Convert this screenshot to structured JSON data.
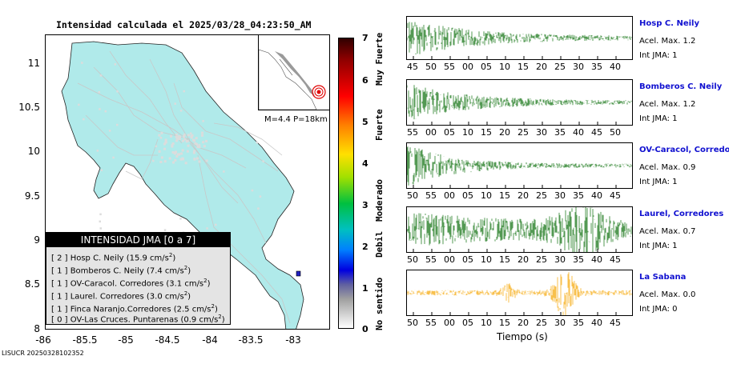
{
  "map": {
    "title": "Intensidad calculada el 2025/03/28_04:23:50_AM",
    "y_ticks": [
      "11",
      "10.5",
      "10",
      "9.5",
      "9",
      "8.5",
      "8"
    ],
    "x_ticks": [
      "-86",
      "-85.5",
      "-85",
      "-84.5",
      "-84",
      "-83.5",
      "-83"
    ],
    "inset_caption": "M=4.4 P=18km",
    "footer": "LISUCR 20250328102352"
  },
  "legend": {
    "title": "INTENSIDAD JMA [0 a 7]",
    "rows": [
      {
        "prefix": "[ 2 ]  Hosp C. Neily (15.9 cm/s",
        "sup": "2",
        "suffix": ")"
      },
      {
        "prefix": "[ 1 ]  Bomberos C. Neily (7.4 cm/s",
        "sup": "2",
        "suffix": ")"
      },
      {
        "prefix": "[ 1 ]  OV-Caracol. Corredores (3.1 cm/s",
        "sup": "2",
        "suffix": ")"
      },
      {
        "prefix": "[ 1 ]  Laurel. Corredores (3.0 cm/s",
        "sup": "2",
        "suffix": ")"
      },
      {
        "prefix": "[ 1 ]  Finca Naranjo.Corredores (2.5 cm/s",
        "sup": "2",
        "suffix": ")"
      },
      {
        "prefix": "[ 0 ]  OV-Las Cruces. Puntarenas (0.9 cm/s",
        "sup": "2",
        "suffix": ")"
      }
    ]
  },
  "colorbar": {
    "ticks": [
      "7",
      "6",
      "5",
      "4",
      "3",
      "2",
      "1",
      "0"
    ],
    "categories": [
      "Muy Fuerte",
      "Fuerte",
      "Moderado",
      "Debil",
      "No sentido"
    ]
  },
  "traces": [
    {
      "name": "Hosp C. Neily",
      "acel": "Acel. Max. 1.2",
      "jma": "Int JMA: 1",
      "ticks": [
        "45",
        "50",
        "55",
        "00",
        "05",
        "10",
        "15",
        "20",
        "25",
        "30",
        "35",
        "40"
      ]
    },
    {
      "name": "Bomberos C. Neily",
      "acel": "Acel. Max. 1.2",
      "jma": "Int JMA: 1",
      "ticks": [
        "55",
        "00",
        "05",
        "10",
        "15",
        "20",
        "25",
        "30",
        "35",
        "40",
        "45",
        "50"
      ]
    },
    {
      "name": "OV-Caracol, Corredore",
      "acel": "Acel. Max. 0.9",
      "jma": "Int JMA: 1",
      "ticks": [
        "50",
        "55",
        "00",
        "05",
        "10",
        "15",
        "20",
        "25",
        "30",
        "35",
        "40",
        "45"
      ]
    },
    {
      "name": "Laurel, Corredores",
      "acel": "Acel. Max. 0.7",
      "jma": "Int JMA: 1",
      "ticks": [
        "50",
        "55",
        "00",
        "05",
        "10",
        "15",
        "20",
        "25",
        "30",
        "35",
        "40",
        "45"
      ]
    },
    {
      "name": "La Sabana",
      "acel": "Acel. Max. 0.0",
      "jma": "Int JMA: 0",
      "ticks": [
        "50",
        "55",
        "00",
        "05",
        "10",
        "15",
        "20",
        "25",
        "30",
        "35",
        "40",
        "45"
      ]
    }
  ],
  "xaxis_label": "Tiempo (s)",
  "colors": {
    "map_land": "#b0eaea",
    "roads": "#c8c8c8",
    "wave_green": "#0a6e0a",
    "wave_orange": "#f5a500",
    "station": "#2020c0"
  },
  "chart_data": [
    {
      "type": "map",
      "title": "Intensidad calculada el 2025/03/28_04:23:50_AM",
      "xlim": [
        -86,
        -82.6
      ],
      "ylim": [
        8,
        11.3
      ],
      "epicenter": {
        "lon": -82.9,
        "lat": 8.55,
        "magnitude": 4.4,
        "depth_km": 18
      }
    },
    {
      "type": "line",
      "series": [
        {
          "name": "Hosp C. Neily",
          "peak_accel": 1.2,
          "jma": 1
        },
        {
          "name": "Bomberos C. Neily",
          "peak_accel": 1.2,
          "jma": 1
        },
        {
          "name": "OV-Caracol, Corredore",
          "peak_accel": 0.9,
          "jma": 1
        },
        {
          "name": "Laurel, Corredores",
          "peak_accel": 0.7,
          "jma": 1
        },
        {
          "name": "La Sabana",
          "peak_accel": 0.0,
          "jma": 0
        }
      ],
      "xlabel": "Tiempo (s)"
    }
  ]
}
